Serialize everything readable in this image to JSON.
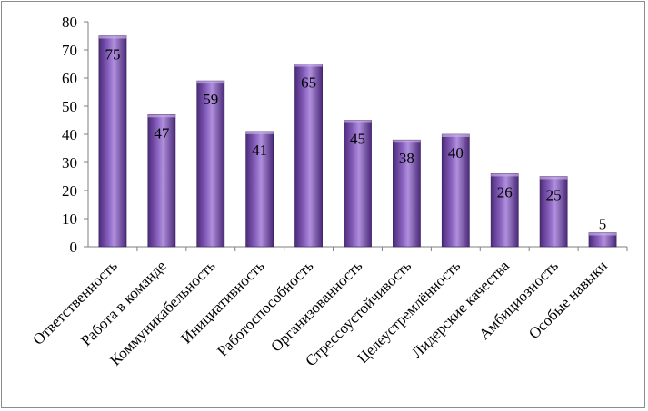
{
  "chart_data": {
    "type": "bar",
    "categories": [
      "Ответственность",
      "Работа в команде",
      "Коммуникабельность",
      "Инициативность",
      "Работоспособность",
      "Организованность",
      "Стрессоустойчивость",
      "Целеустремлённость",
      "Лидерские качества",
      "Амбициозность",
      "Особые навыки"
    ],
    "values": [
      75,
      47,
      59,
      41,
      65,
      45,
      38,
      40,
      26,
      25,
      5
    ],
    "ylim": [
      0,
      80
    ],
    "yticks": [
      0,
      10,
      20,
      30,
      40,
      50,
      60,
      70,
      80
    ],
    "grid": false,
    "legend": "none",
    "data_labels": true,
    "colors": {
      "bar_dark": "#4a2a78",
      "bar_mid": "#8a62c0",
      "bar_light": "#b090dc",
      "axis": "#7f7f7f"
    }
  }
}
